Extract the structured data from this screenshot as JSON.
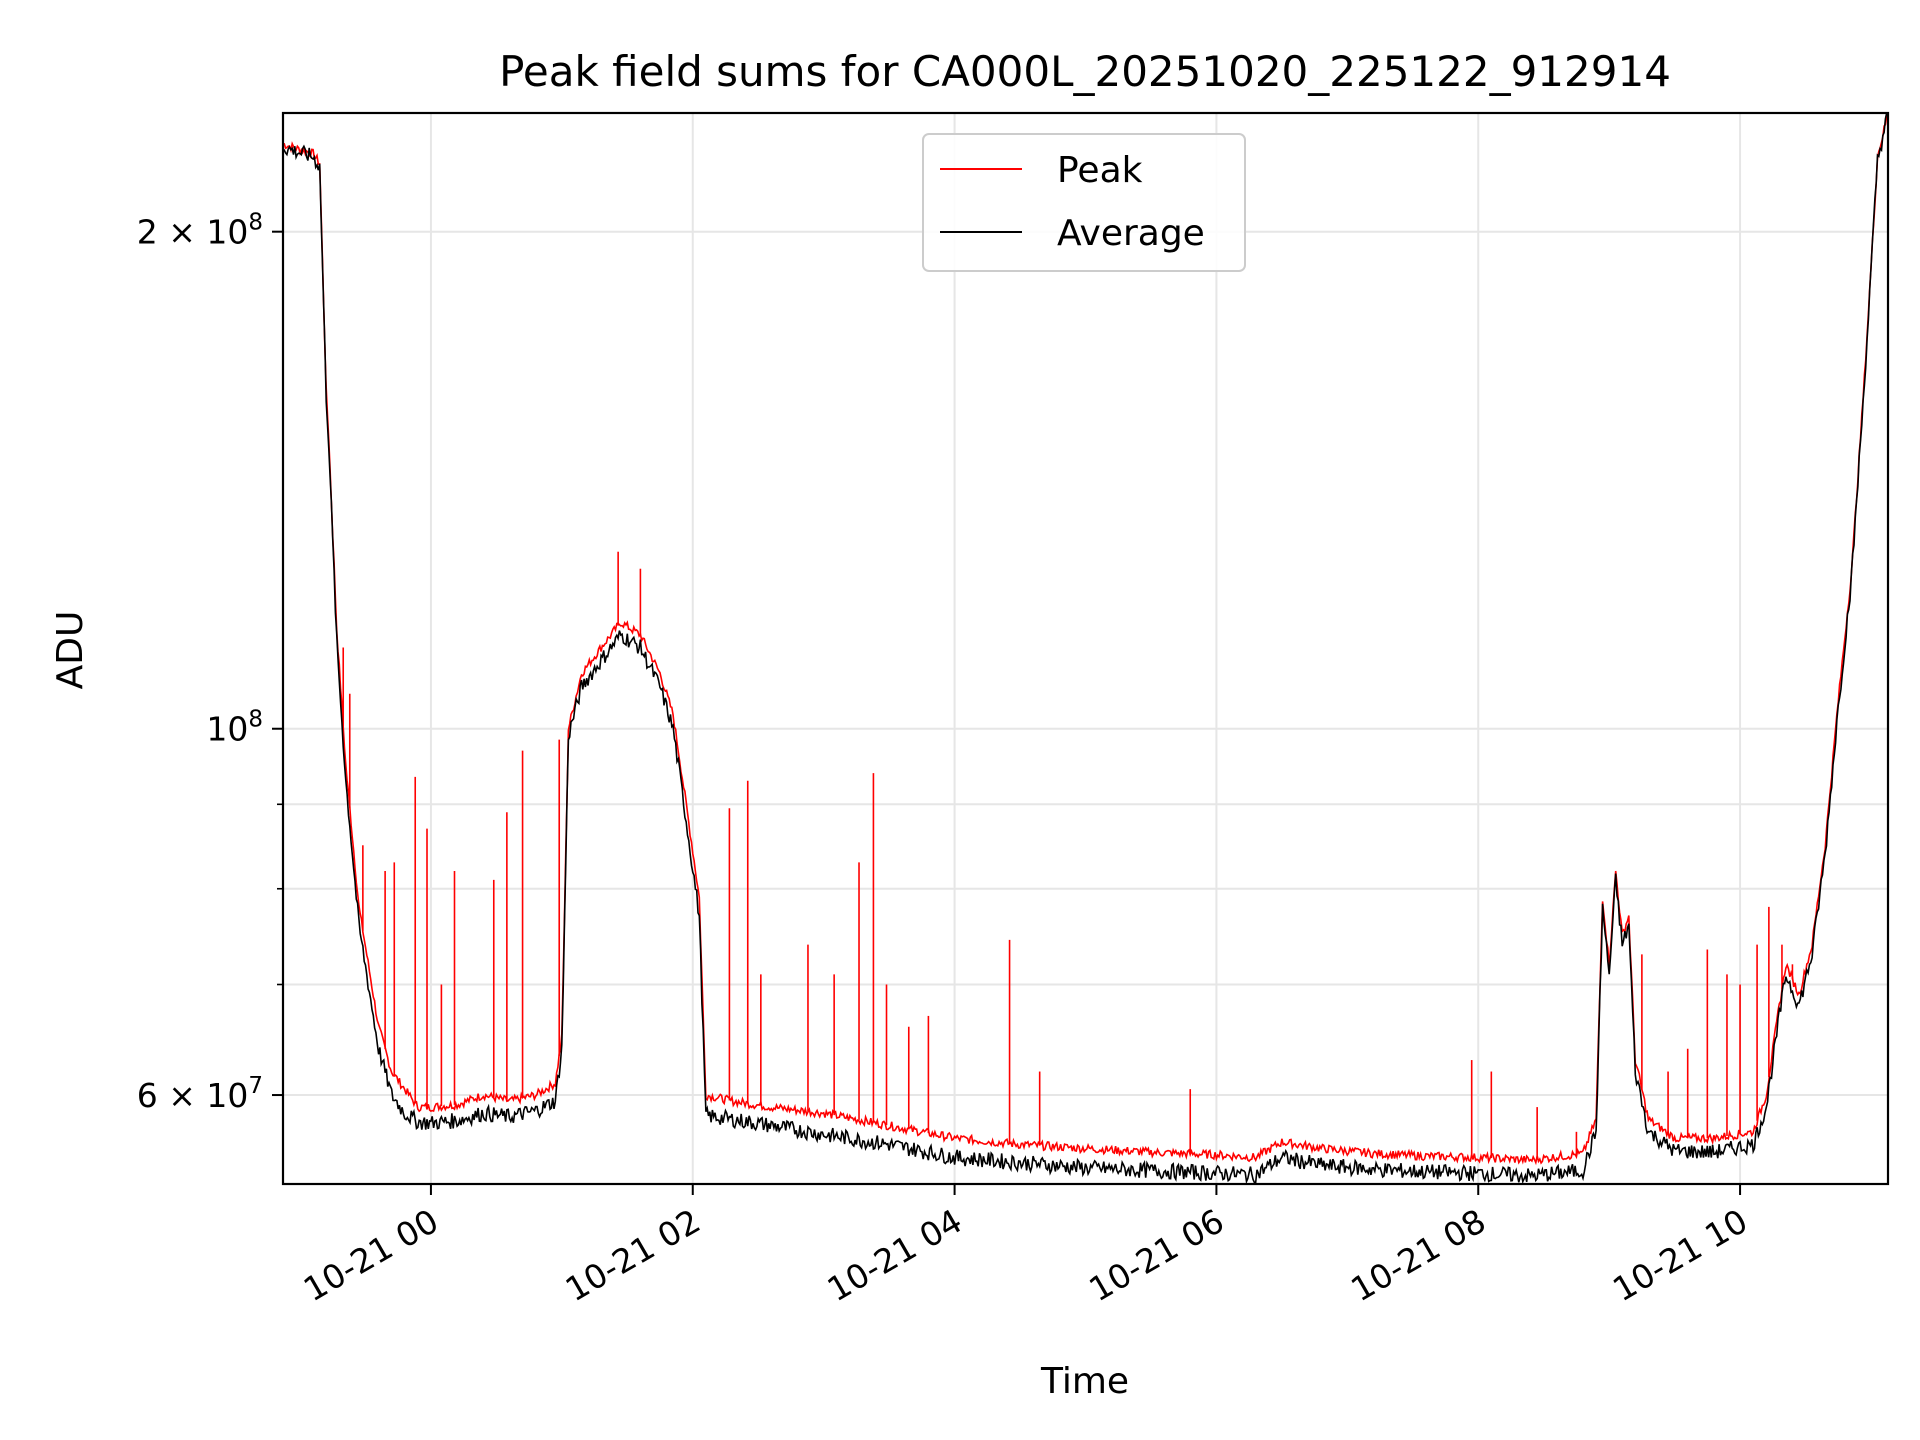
{
  "chart_data": {
    "type": "line",
    "title": "Peak field sums for CA000L_20251020_225122_912914",
    "xlabel": "Time",
    "ylabel": "ADU",
    "y_scale": "log",
    "ylim": [
      53000000,
      236000000
    ],
    "xlim_hours": [
      -1.13,
      11.13
    ],
    "grid": true,
    "legend_position": "upper center",
    "x_ticks": [
      {
        "hour": 0,
        "label": "10-21 00"
      },
      {
        "hour": 2,
        "label": "10-21 02"
      },
      {
        "hour": 4,
        "label": "10-21 04"
      },
      {
        "hour": 6,
        "label": "10-21 06"
      },
      {
        "hour": 8,
        "label": "10-21 08"
      },
      {
        "hour": 10,
        "label": "10-21 10"
      }
    ],
    "y_major_ticks": [
      {
        "value": 200000000,
        "mantissa": "2",
        "exp": "8"
      },
      {
        "value": 100000000,
        "mantissa": "",
        "exp": "8"
      },
      {
        "value": 60000000,
        "mantissa": "6",
        "exp": "7"
      }
    ],
    "y_minor_ticks": [
      70000000,
      80000000,
      90000000
    ],
    "series": [
      {
        "name": "Peak",
        "color": "#ff0000",
        "x_hours": [
          -1.13,
          -0.9,
          -0.85,
          -0.8,
          -0.78,
          -0.72,
          -0.65,
          -0.55,
          -0.4,
          -0.3,
          -0.2,
          -0.1,
          0,
          0.2,
          0.4,
          0.6,
          0.8,
          0.95,
          1.0,
          1.05,
          1.15,
          1.3,
          1.45,
          1.6,
          1.75,
          1.85,
          1.95,
          2.05,
          2.1,
          2.3,
          2.6,
          3.0,
          3.5,
          4.0,
          4.5,
          5.0,
          5.5,
          6.0,
          6.3,
          6.5,
          6.8,
          7.2,
          7.6,
          8.0,
          8.4,
          8.8,
          8.9,
          8.95,
          9.0,
          9.05,
          9.1,
          9.15,
          9.2,
          9.3,
          9.5,
          9.8,
          10.1,
          10.2,
          10.3,
          10.35,
          10.45,
          10.55,
          10.65,
          10.75,
          10.85,
          10.95,
          11.05,
          11.13
        ],
        "y": [
          226000000,
          223000000,
          220000000,
          160000000,
          150000000,
          115000000,
          95000000,
          78000000,
          66000000,
          62000000,
          60500000,
          59000000,
          59000000,
          59200000,
          60000000,
          59500000,
          60000000,
          61000000,
          65000000,
          100000000,
          108000000,
          112000000,
          116000000,
          114000000,
          108000000,
          102000000,
          90000000,
          79000000,
          60000000,
          59500000,
          59000000,
          58500000,
          57500000,
          56500000,
          56000000,
          55700000,
          55400000,
          55200000,
          55000000,
          56200000,
          55700000,
          55300000,
          55100000,
          55000000,
          54800000,
          55300000,
          58000000,
          79000000,
          72000000,
          82000000,
          75000000,
          77000000,
          63000000,
          58000000,
          56500000,
          56500000,
          57000000,
          60000000,
          68000000,
          72000000,
          69000000,
          74000000,
          85000000,
          104000000,
          124000000,
          163000000,
          222000000,
          236000000
        ]
      },
      {
        "name": "Average",
        "color": "#000000",
        "x_hours": [
          -1.13,
          -0.9,
          -0.85,
          -0.8,
          -0.78,
          -0.72,
          -0.65,
          -0.55,
          -0.4,
          -0.3,
          -0.2,
          -0.1,
          0,
          0.2,
          0.4,
          0.6,
          0.8,
          0.95,
          1.0,
          1.05,
          1.15,
          1.3,
          1.45,
          1.6,
          1.75,
          1.85,
          1.95,
          2.05,
          2.1,
          2.3,
          2.6,
          3.0,
          3.5,
          4.0,
          4.5,
          5.0,
          5.5,
          6.0,
          6.3,
          6.5,
          6.8,
          7.2,
          7.6,
          8.0,
          8.4,
          8.8,
          8.9,
          8.95,
          9.0,
          9.05,
          9.1,
          9.15,
          9.2,
          9.3,
          9.5,
          9.8,
          10.1,
          10.2,
          10.3,
          10.35,
          10.45,
          10.55,
          10.65,
          10.75,
          10.85,
          10.95,
          11.05,
          11.13
        ],
        "y": [
          225000000,
          222000000,
          219000000,
          159000000,
          149000000,
          113000000,
          93000000,
          76000000,
          64000000,
          60000000,
          58500000,
          57800000,
          57700000,
          57900000,
          58500000,
          58200000,
          58700000,
          59500000,
          64000000,
          99000000,
          106000000,
          110000000,
          114000000,
          112000000,
          106000000,
          100000000,
          88000000,
          77000000,
          58300000,
          58000000,
          57500000,
          56800000,
          56000000,
          55000000,
          54600000,
          54200000,
          54000000,
          53800000,
          53700000,
          55000000,
          54400000,
          54100000,
          53900000,
          53800000,
          53600000,
          54000000,
          57000000,
          78000000,
          71000000,
          81000000,
          74000000,
          76000000,
          62000000,
          57000000,
          55500000,
          55400000,
          56000000,
          59000000,
          67000000,
          71000000,
          68000000,
          73000000,
          84000000,
          103000000,
          123000000,
          162000000,
          221000000,
          236000000
        ]
      }
    ],
    "peak_spikes": [
      {
        "x": -0.67,
        "y": 112000000
      },
      {
        "x": -0.62,
        "y": 105000000
      },
      {
        "x": -0.52,
        "y": 85000000
      },
      {
        "x": -0.35,
        "y": 82000000
      },
      {
        "x": -0.28,
        "y": 83000000
      },
      {
        "x": -0.12,
        "y": 93500000
      },
      {
        "x": -0.03,
        "y": 87000000
      },
      {
        "x": 0.08,
        "y": 70000000
      },
      {
        "x": 0.18,
        "y": 82000000
      },
      {
        "x": 0.48,
        "y": 81000000
      },
      {
        "x": 0.58,
        "y": 89000000
      },
      {
        "x": 0.7,
        "y": 97000000
      },
      {
        "x": 0.98,
        "y": 98500000
      },
      {
        "x": 1.43,
        "y": 128000000
      },
      {
        "x": 1.6,
        "y": 125000000
      },
      {
        "x": 2.28,
        "y": 89500000
      },
      {
        "x": 2.42,
        "y": 93000000
      },
      {
        "x": 2.52,
        "y": 71000000
      },
      {
        "x": 2.88,
        "y": 74000000
      },
      {
        "x": 3.08,
        "y": 71000000
      },
      {
        "x": 3.27,
        "y": 83000000
      },
      {
        "x": 3.38,
        "y": 94000000
      },
      {
        "x": 3.48,
        "y": 70000000
      },
      {
        "x": 3.65,
        "y": 66000000
      },
      {
        "x": 3.8,
        "y": 67000000
      },
      {
        "x": 4.42,
        "y": 74500000
      },
      {
        "x": 4.65,
        "y": 62000000
      },
      {
        "x": 5.8,
        "y": 60500000
      },
      {
        "x": 7.95,
        "y": 63000000
      },
      {
        "x": 8.1,
        "y": 62000000
      },
      {
        "x": 8.45,
        "y": 59000000
      },
      {
        "x": 8.75,
        "y": 57000000
      },
      {
        "x": 9.25,
        "y": 73000000
      },
      {
        "x": 9.45,
        "y": 62000000
      },
      {
        "x": 9.6,
        "y": 64000000
      },
      {
        "x": 9.75,
        "y": 73500000
      },
      {
        "x": 9.9,
        "y": 71000000
      },
      {
        "x": 10.0,
        "y": 70000000
      },
      {
        "x": 10.13,
        "y": 74000000
      },
      {
        "x": 10.22,
        "y": 78000000
      },
      {
        "x": 10.32,
        "y": 74000000
      },
      {
        "x": 10.4,
        "y": 72000000
      }
    ]
  }
}
